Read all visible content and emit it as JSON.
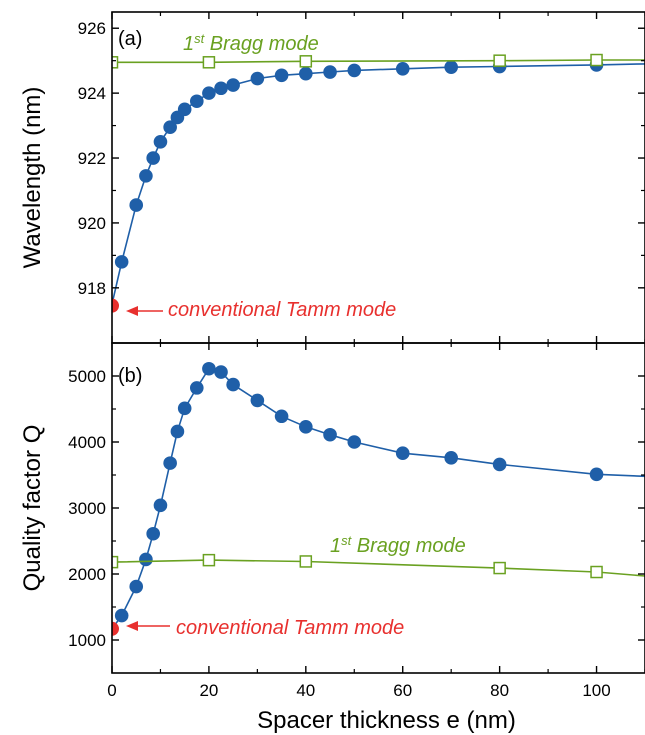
{
  "chart_data": [
    {
      "type": "line",
      "panel_label": "(a)",
      "ylabel": "Wavelength (nm)",
      "xlim": [
        0,
        110
      ],
      "ylim": [
        916.3,
        926.5
      ],
      "xticks": [
        0,
        20,
        40,
        60,
        80,
        100
      ],
      "yticks": [
        918,
        920,
        922,
        924,
        926
      ],
      "series": [
        {
          "marker": "filled-circle",
          "color": "#1f5fa8",
          "x": [
            0,
            2,
            5,
            7,
            8.5,
            10,
            12,
            13.5,
            15,
            17.5,
            20,
            22.5,
            25,
            30,
            35,
            40,
            45,
            50,
            60,
            70,
            80,
            100,
            110
          ],
          "y": [
            917.5,
            918.8,
            920.55,
            921.45,
            922.0,
            922.5,
            922.95,
            923.25,
            923.5,
            923.75,
            924.0,
            924.15,
            924.25,
            924.45,
            924.55,
            924.6,
            924.65,
            924.7,
            924.75,
            924.8,
            924.82,
            924.87,
            924.9
          ]
        },
        {
          "marker": "open-square",
          "color": "#6aa121",
          "x": [
            0,
            20,
            40,
            80,
            100,
            110
          ],
          "y": [
            924.95,
            924.95,
            924.98,
            925.0,
            925.02,
            925.02
          ]
        }
      ],
      "conventional_point": {
        "x": 0,
        "y": 917.45,
        "color": "#e8302e"
      },
      "annotations": [
        {
          "text": "conventional Tamm mode",
          "color": "#e8302e"
        },
        {
          "text_sup_base": "1",
          "text_sup": "st",
          "text_rest": " Bragg mode",
          "color": "#6aa121"
        }
      ]
    },
    {
      "type": "line",
      "panel_label": "(b)",
      "ylabel": "Quality factor Q",
      "xlabel": "Spacer thickness e (nm)",
      "xlim": [
        0,
        110
      ],
      "ylim": [
        500,
        5500
      ],
      "xticks": [
        0,
        20,
        40,
        60,
        80,
        100
      ],
      "yticks": [
        1000,
        2000,
        3000,
        4000,
        5000
      ],
      "series": [
        {
          "marker": "filled-circle",
          "color": "#1f5fa8",
          "x": [
            0,
            2,
            5,
            7,
            8.5,
            10,
            12,
            13.5,
            15,
            17.5,
            20,
            22.5,
            25,
            30,
            35,
            40,
            45,
            50,
            60,
            70,
            80,
            100,
            110
          ],
          "y": [
            1170,
            1370,
            1810,
            2220,
            2610,
            3040,
            3680,
            4160,
            4510,
            4820,
            5110,
            5060,
            4870,
            4630,
            4390,
            4230,
            4110,
            4000,
            3830,
            3760,
            3660,
            3510,
            3480
          ]
        },
        {
          "marker": "open-square",
          "color": "#6aa121",
          "x": [
            0,
            20,
            40,
            80,
            100,
            110
          ],
          "y": [
            2180,
            2210,
            2190,
            2090,
            2030,
            1970
          ]
        }
      ],
      "conventional_point": {
        "x": 0,
        "y": 1170,
        "color": "#e8302e"
      },
      "annotations": [
        {
          "text": "conventional Tamm mode",
          "color": "#e8302e"
        },
        {
          "text_sup_base": "1",
          "text_sup": "st",
          "text_rest": " Bragg mode",
          "color": "#6aa121"
        }
      ]
    }
  ]
}
